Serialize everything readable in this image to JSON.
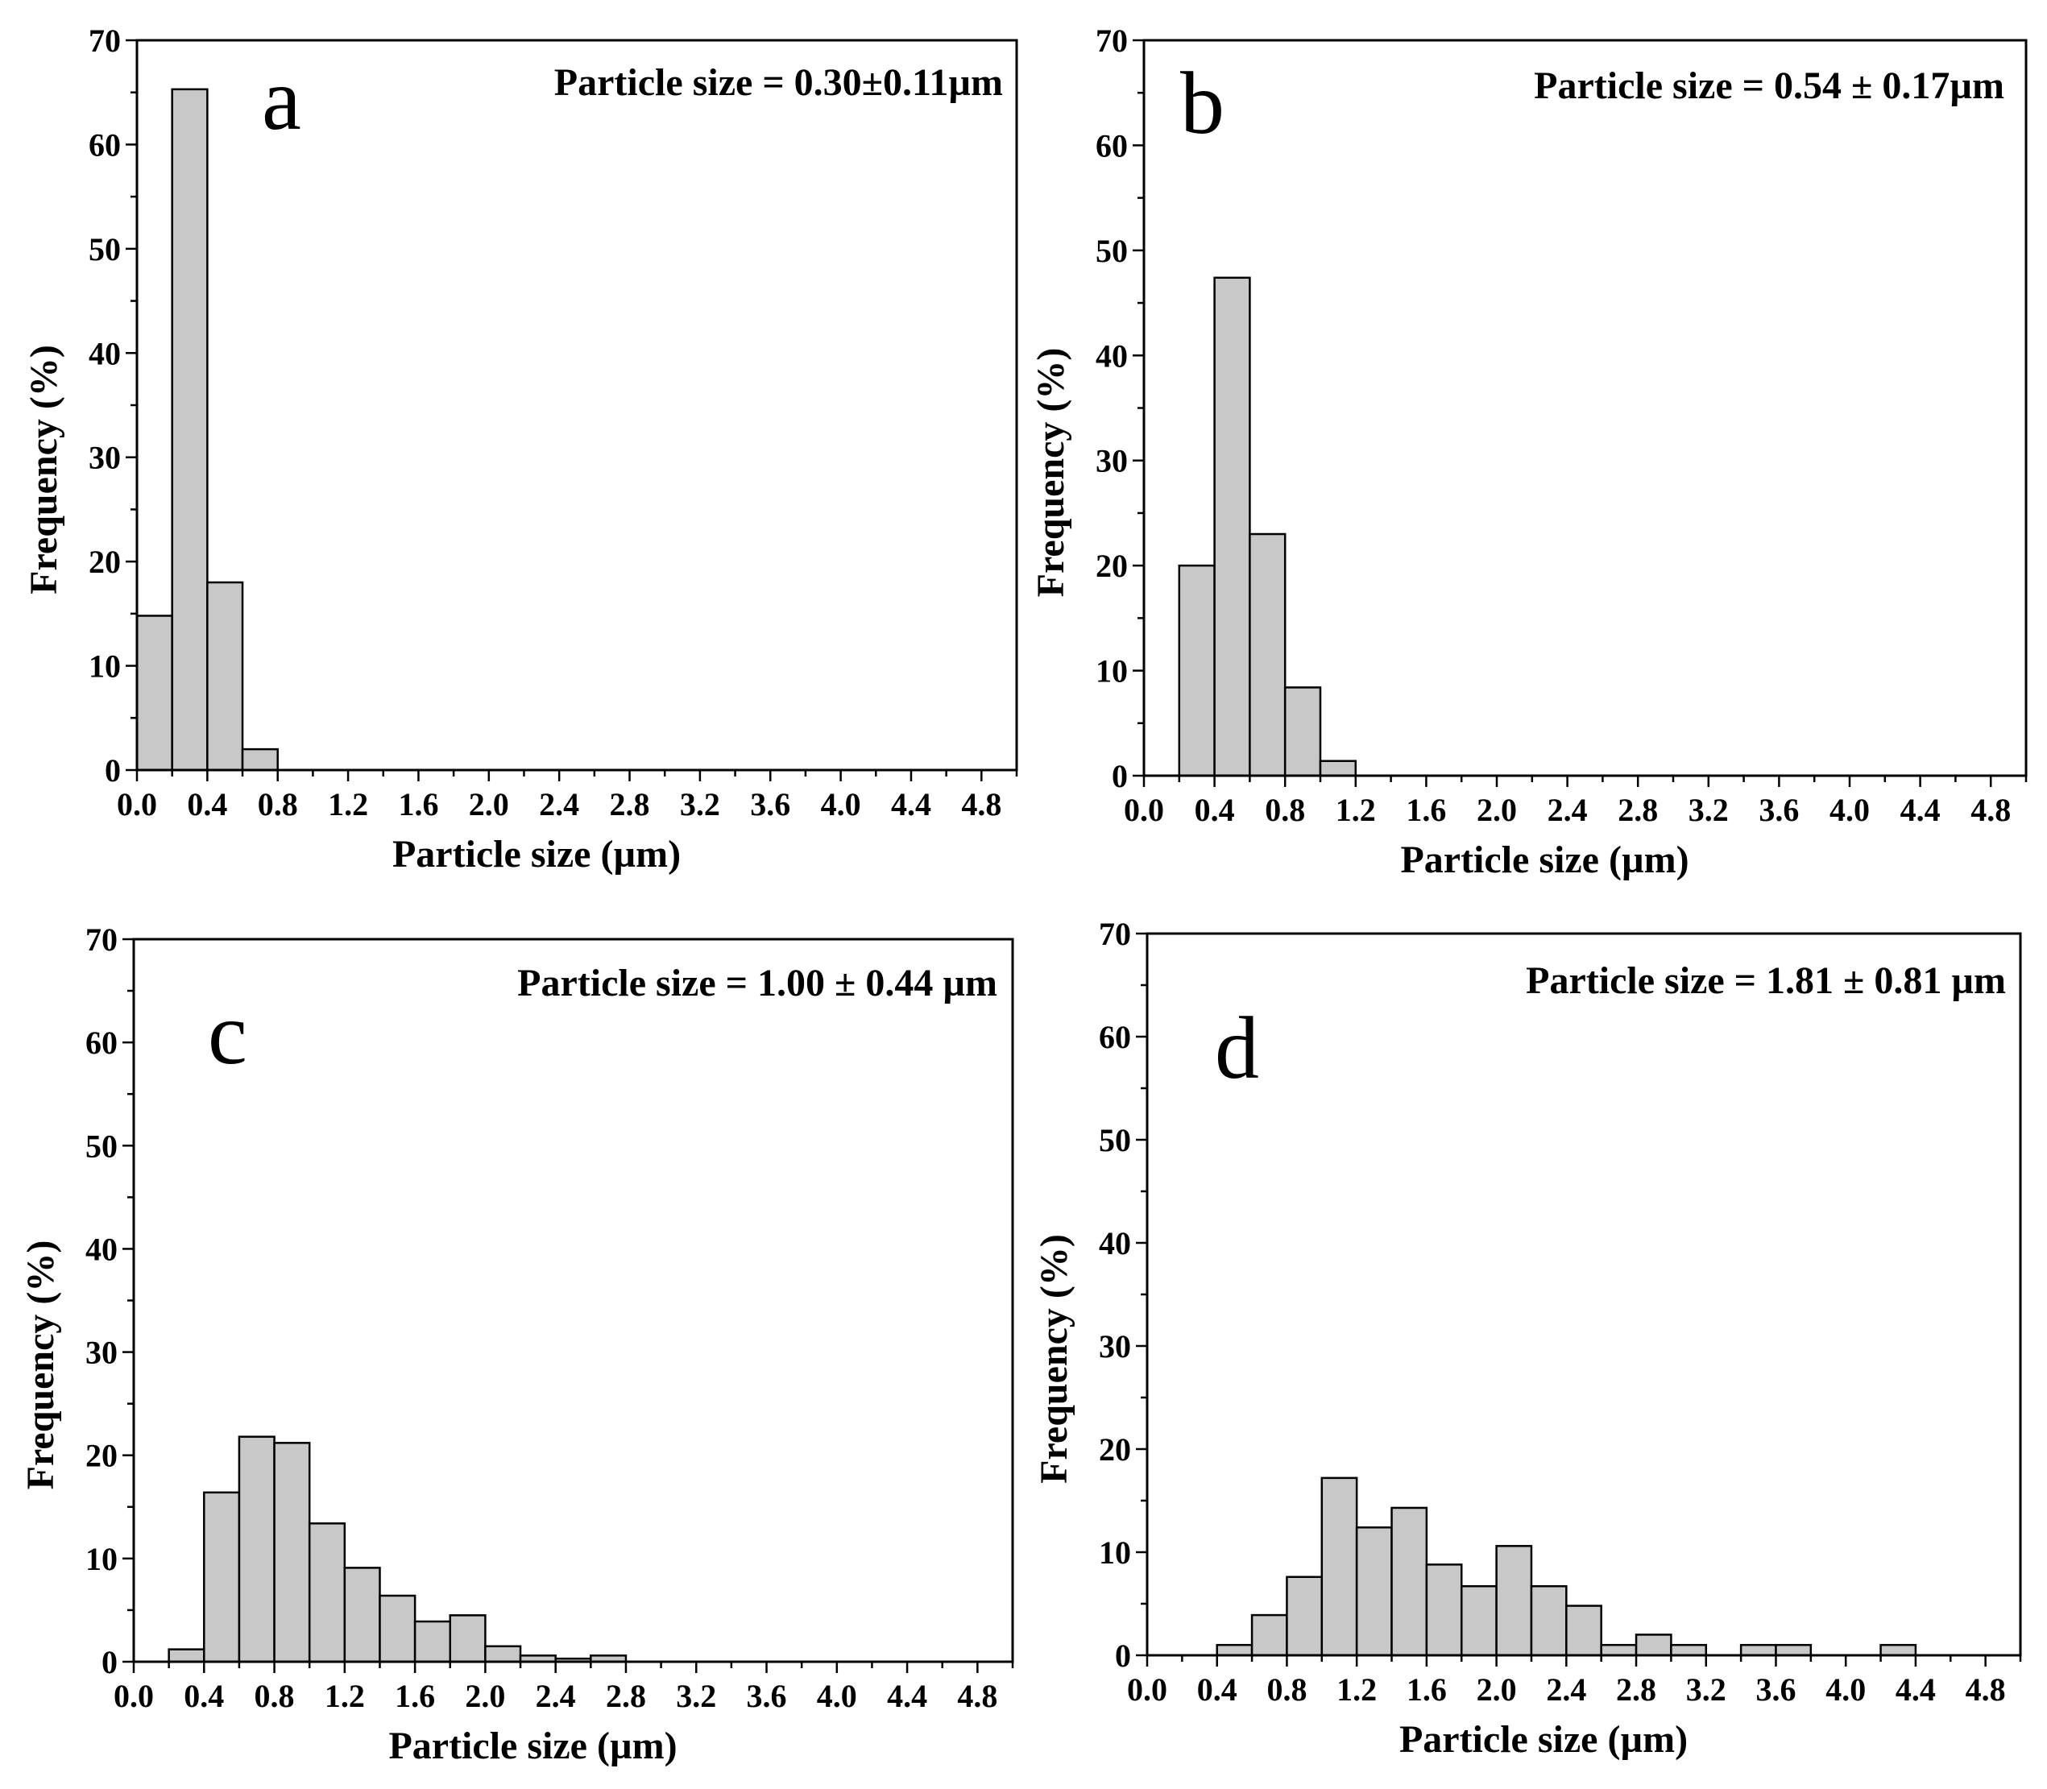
{
  "chart_data": [
    {
      "type": "bar",
      "panel": "a",
      "annotation": "Particle size = 0.30±0.11µm",
      "xlabel": "Particle size (µm)",
      "ylabel": "Frequency (%)",
      "xlim": [
        0,
        5.0
      ],
      "ylim": [
        0,
        70
      ],
      "x_ticks": [
        "0.0",
        "0.4",
        "0.8",
        "1.2",
        "1.6",
        "2.0",
        "2.4",
        "2.8",
        "3.2",
        "3.6",
        "4.0",
        "4.4",
        "4.8"
      ],
      "y_ticks": [
        "0",
        "10",
        "20",
        "30",
        "40",
        "50",
        "60",
        "70"
      ],
      "bin_width": 0.2,
      "bins": [
        {
          "x0": 0.0,
          "value": 14.8
        },
        {
          "x0": 0.2,
          "value": 65.3
        },
        {
          "x0": 0.4,
          "value": 18.0
        },
        {
          "x0": 0.6,
          "value": 2.0
        }
      ]
    },
    {
      "type": "bar",
      "panel": "b",
      "annotation": "Particle size = 0.54 ± 0.17µm",
      "xlabel": "Particle size (µm)",
      "ylabel": "Frequency (%)",
      "xlim": [
        0,
        5.0
      ],
      "ylim": [
        0,
        70
      ],
      "x_ticks": [
        "0.0",
        "0.4",
        "0.8",
        "1.2",
        "1.6",
        "2.0",
        "2.4",
        "2.8",
        "3.2",
        "3.6",
        "4.0",
        "4.4",
        "4.8"
      ],
      "y_ticks": [
        "0",
        "10",
        "20",
        "30",
        "40",
        "50",
        "60",
        "70"
      ],
      "bin_width": 0.2,
      "bins": [
        {
          "x0": 0.2,
          "value": 20.0
        },
        {
          "x0": 0.4,
          "value": 47.4
        },
        {
          "x0": 0.6,
          "value": 23.0
        },
        {
          "x0": 0.8,
          "value": 8.4
        },
        {
          "x0": 1.0,
          "value": 1.4
        }
      ]
    },
    {
      "type": "bar",
      "panel": "c",
      "annotation": "Particle size = 1.00 ± 0.44 µm",
      "xlabel": "Particle size (µm)",
      "ylabel": "Frequency (%)",
      "xlim": [
        0,
        5.0
      ],
      "ylim": [
        0,
        70
      ],
      "x_ticks": [
        "0.0",
        "0.4",
        "0.8",
        "1.2",
        "1.6",
        "2.0",
        "2.4",
        "2.8",
        "3.2",
        "3.6",
        "4.0",
        "4.4",
        "4.8"
      ],
      "y_ticks": [
        "0",
        "10",
        "20",
        "30",
        "40",
        "50",
        "60",
        "70"
      ],
      "bin_width": 0.2,
      "bins": [
        {
          "x0": 0.2,
          "value": 1.2
        },
        {
          "x0": 0.4,
          "value": 16.4
        },
        {
          "x0": 0.6,
          "value": 21.8
        },
        {
          "x0": 0.8,
          "value": 21.2
        },
        {
          "x0": 1.0,
          "value": 13.4
        },
        {
          "x0": 1.2,
          "value": 9.1
        },
        {
          "x0": 1.4,
          "value": 6.4
        },
        {
          "x0": 1.6,
          "value": 3.9
        },
        {
          "x0": 1.8,
          "value": 4.5
        },
        {
          "x0": 2.0,
          "value": 1.5
        },
        {
          "x0": 2.2,
          "value": 0.6
        },
        {
          "x0": 2.4,
          "value": 0.3
        },
        {
          "x0": 2.6,
          "value": 0.6
        }
      ]
    },
    {
      "type": "bar",
      "panel": "d",
      "annotation": "Particle size = 1.81 ± 0.81 µm",
      "xlabel": "Particle size (µm)",
      "ylabel": "Frequency (%)",
      "xlim": [
        0,
        5.0
      ],
      "ylim": [
        0,
        70
      ],
      "x_ticks": [
        "0.0",
        "0.4",
        "0.8",
        "1.2",
        "1.6",
        "2.0",
        "2.4",
        "2.8",
        "3.2",
        "3.6",
        "4.0",
        "4.4",
        "4.8"
      ],
      "y_ticks": [
        "0",
        "10",
        "20",
        "30",
        "40",
        "50",
        "60",
        "70"
      ],
      "bin_width": 0.2,
      "bins": [
        {
          "x0": 0.4,
          "value": 1.0
        },
        {
          "x0": 0.6,
          "value": 3.9
        },
        {
          "x0": 0.8,
          "value": 7.6
        },
        {
          "x0": 1.0,
          "value": 17.2
        },
        {
          "x0": 1.2,
          "value": 12.4
        },
        {
          "x0": 1.4,
          "value": 14.3
        },
        {
          "x0": 1.6,
          "value": 8.8
        },
        {
          "x0": 1.8,
          "value": 6.7
        },
        {
          "x0": 2.0,
          "value": 10.6
        },
        {
          "x0": 2.2,
          "value": 6.7
        },
        {
          "x0": 2.4,
          "value": 4.8
        },
        {
          "x0": 2.6,
          "value": 1.0
        },
        {
          "x0": 2.8,
          "value": 2.0
        },
        {
          "x0": 3.0,
          "value": 1.0
        },
        {
          "x0": 3.4,
          "value": 1.0
        },
        {
          "x0": 3.6,
          "value": 1.0
        },
        {
          "x0": 4.2,
          "value": 1.0
        }
      ]
    }
  ]
}
